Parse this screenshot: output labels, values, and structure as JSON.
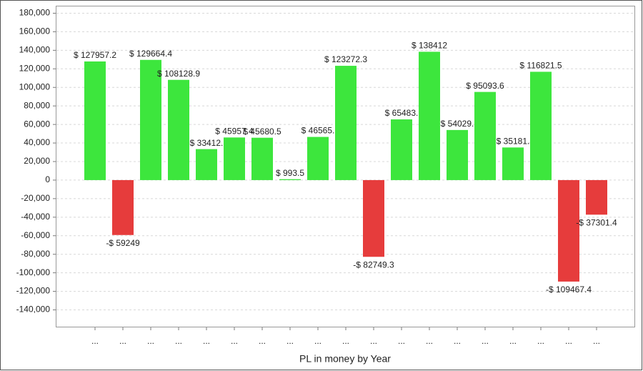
{
  "chart_data": {
    "type": "bar",
    "x_label": "PL in money by Year",
    "categories": [
      "...",
      "...",
      "...",
      "...",
      "...",
      "...",
      "...",
      "...",
      "...",
      "...",
      "...",
      "...",
      "...",
      "...",
      "...",
      "...",
      "...",
      "...",
      "..."
    ],
    "values": [
      127957.2,
      -59249,
      129664.4,
      108128.9,
      33412,
      45957.4,
      45680.5,
      993.5,
      46565,
      123272.3,
      -82749.3,
      65483,
      138412,
      54029,
      95093.6,
      35181,
      116821.5,
      -109467.4,
      -37301.4
    ],
    "value_labels": [
      "$ 127957.2",
      "-$ 59249",
      "$ 129664.4",
      "$ 108128.9",
      "$ 33412.",
      "$ 45957.4",
      "$ 45680.5",
      "$ 993.5",
      "$ 46565.",
      "$ 123272.3",
      "-$ 82749.3",
      "$ 65483.",
      "$ 138412",
      "$ 54029.",
      "$ 95093.6",
      "$ 35181.",
      "$ 116821.5",
      "-$ 109467.4",
      "-$ 37301.4"
    ],
    "positive_color": "#3de63d",
    "negative_color": "#e63c3c",
    "ylim": [
      -158500,
      187700
    ],
    "yticks": [
      {
        "value": -140000,
        "label": "-140,000"
      },
      {
        "value": -120000,
        "label": "-120,000"
      },
      {
        "value": -100000,
        "label": "-100,000"
      },
      {
        "value": -80000,
        "label": "-80,000"
      },
      {
        "value": -60000,
        "label": "-60,000"
      },
      {
        "value": -40000,
        "label": "-40,000"
      },
      {
        "value": -20000,
        "label": "-20,000"
      },
      0,
      {
        "value": 20000,
        "label": "20,000"
      },
      {
        "value": 40000,
        "label": "40,000"
      },
      {
        "value": 60000,
        "label": "60,000"
      },
      {
        "value": 80000,
        "label": "80,000"
      },
      {
        "value": 100000,
        "label": "100,000"
      },
      {
        "value": 120000,
        "label": "120,000"
      },
      {
        "value": 140000,
        "label": "140,000"
      },
      {
        "value": 160000,
        "label": "160,000"
      },
      {
        "value": 180000,
        "label": "180,000"
      }
    ],
    "grid": true
  }
}
